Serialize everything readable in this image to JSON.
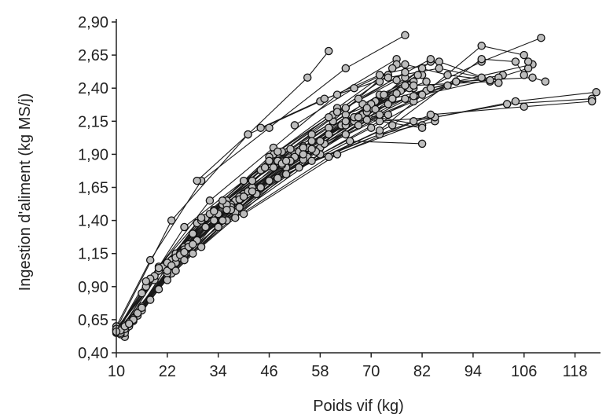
{
  "chart_data": {
    "type": "line",
    "xlabel": "Poids vif (kg)",
    "ylabel": "Ingestion d'aliment (kg MS/j)",
    "xlim": [
      10,
      124
    ],
    "ylim": [
      0.4,
      2.9
    ],
    "x_ticks": [
      10,
      22,
      34,
      46,
      58,
      70,
      82,
      94,
      106,
      118
    ],
    "x_tick_labels": [
      "10",
      "22",
      "34",
      "46",
      "58",
      "70",
      "82",
      "94",
      "106",
      "118"
    ],
    "y_ticks": [
      0.4,
      0.65,
      0.9,
      1.15,
      1.4,
      1.65,
      1.9,
      2.15,
      2.4,
      2.65,
      2.9
    ],
    "y_tick_labels": [
      "0,40",
      "0,65",
      "0,90",
      "1,15",
      "1,40",
      "1,65",
      "1,90",
      "2,15",
      "2,40",
      "2,65",
      "2,90"
    ],
    "grid": false,
    "legend": "none",
    "series": [
      {
        "x": [
          10,
          23,
          41,
          55,
          60
        ],
        "y": [
          0.58,
          1.4,
          2.05,
          2.48,
          2.68
        ]
      },
      {
        "x": [
          10,
          18,
          30,
          46,
          64,
          78
        ],
        "y": [
          0.6,
          1.1,
          1.7,
          2.1,
          2.55,
          2.8
        ]
      },
      {
        "x": [
          11,
          20,
          32,
          47,
          62,
          76
        ],
        "y": [
          0.55,
          1.05,
          1.55,
          1.95,
          2.35,
          2.62
        ]
      },
      {
        "x": [
          10,
          17,
          26,
          40,
          56,
          72,
          82
        ],
        "y": [
          0.55,
          0.9,
          1.35,
          1.7,
          2.05,
          2.35,
          2.5
        ]
      },
      {
        "x": [
          12,
          22,
          36,
          50,
          66,
          78
        ],
        "y": [
          0.52,
          0.98,
          1.4,
          1.8,
          2.15,
          2.48
        ]
      },
      {
        "x": [
          11,
          21,
          33,
          48,
          64,
          80
        ],
        "y": [
          0.58,
          1.05,
          1.48,
          1.85,
          2.2,
          2.4
        ]
      },
      {
        "x": [
          13,
          24,
          38,
          52,
          68,
          82
        ],
        "y": [
          0.62,
          1.15,
          1.55,
          1.9,
          2.2,
          2.12
        ]
      },
      {
        "x": [
          10,
          19,
          29,
          44,
          60,
          75
        ],
        "y": [
          0.57,
          0.95,
          1.38,
          1.78,
          2.1,
          2.32
        ]
      },
      {
        "x": [
          14,
          26,
          40,
          55,
          70,
          84
        ],
        "y": [
          0.65,
          1.2,
          1.6,
          1.95,
          2.25,
          2.6
        ]
      },
      {
        "x": [
          12,
          23,
          35,
          50,
          65,
          82
        ],
        "y": [
          0.55,
          1.0,
          1.4,
          1.75,
          2.0,
          1.98
        ]
      },
      {
        "x": [
          10,
          16,
          28,
          42,
          58,
          74
        ],
        "y": [
          0.56,
          0.85,
          1.3,
          1.65,
          1.95,
          2.2
        ]
      },
      {
        "x": [
          15,
          25,
          39,
          53,
          68,
          80
        ],
        "y": [
          0.7,
          1.15,
          1.58,
          1.92,
          2.28,
          2.45
        ]
      },
      {
        "x": [
          11,
          22,
          34,
          49,
          63,
          77
        ],
        "y": [
          0.54,
          1.0,
          1.45,
          1.82,
          2.12,
          2.38
        ]
      },
      {
        "x": [
          13,
          24,
          37,
          52,
          66,
          79
        ],
        "y": [
          0.6,
          1.08,
          1.52,
          1.88,
          2.18,
          2.42
        ]
      },
      {
        "x": [
          10,
          20,
          31,
          45,
          61,
          76
        ],
        "y": [
          0.58,
          1.02,
          1.42,
          1.8,
          2.15,
          2.58
        ]
      },
      {
        "x": [
          16,
          28,
          42,
          56,
          71,
          83
        ],
        "y": [
          0.75,
          1.3,
          1.7,
          2.0,
          2.3,
          2.45
        ]
      },
      {
        "x": [
          12,
          21,
          35,
          47,
          62,
          75
        ],
        "y": [
          0.6,
          1.05,
          1.52,
          1.9,
          2.25,
          2.55
        ]
      },
      {
        "x": [
          14,
          25,
          37,
          51,
          67,
          80
        ],
        "y": [
          0.64,
          1.12,
          1.5,
          1.85,
          2.12,
          2.3
        ]
      },
      {
        "x": [
          11,
          19,
          30,
          46,
          61,
          74
        ],
        "y": [
          0.56,
          0.98,
          1.4,
          1.88,
          2.2,
          2.5
        ]
      },
      {
        "x": [
          15,
          27,
          41,
          54,
          69,
          79
        ],
        "y": [
          0.68,
          1.22,
          1.62,
          1.96,
          2.22,
          2.4
        ]
      },
      {
        "x": [
          13,
          23,
          36,
          49,
          64,
          78
        ],
        "y": [
          0.62,
          1.1,
          1.55,
          1.92,
          2.25,
          2.52
        ]
      },
      {
        "x": [
          12,
          24,
          38,
          53,
          72,
          85
        ],
        "y": [
          0.58,
          1.08,
          1.46,
          1.8,
          2.05,
          2.15
        ]
      },
      {
        "x": [
          10,
          18,
          32,
          48,
          66,
          82
        ],
        "y": [
          0.57,
          0.96,
          1.45,
          1.85,
          2.18,
          2.1
        ]
      },
      {
        "x": [
          14,
          26,
          43,
          58,
          72,
          85
        ],
        "y": [
          0.66,
          1.18,
          1.6,
          1.9,
          2.15,
          2.18
        ]
      },
      {
        "x": [
          11,
          22,
          39,
          55,
          70,
          81
        ],
        "y": [
          0.55,
          1.02,
          1.5,
          1.88,
          2.28,
          2.5
        ]
      },
      {
        "x": [
          16,
          29,
          44,
          60,
          73,
          82
        ],
        "y": [
          0.72,
          1.25,
          1.65,
          2.05,
          2.35,
          2.55
        ]
      },
      {
        "x": [
          12,
          20,
          33,
          49,
          64,
          76
        ],
        "y": [
          0.61,
          1.04,
          1.47,
          1.83,
          2.12,
          2.36
        ]
      },
      {
        "x": [
          10,
          22,
          36,
          51,
          67,
          84
        ],
        "y": [
          0.58,
          1.08,
          1.52,
          1.94,
          2.32,
          2.62
        ]
      },
      {
        "x": [
          13,
          27,
          40,
          57,
          74,
          88
        ],
        "y": [
          0.63,
          1.2,
          1.58,
          1.92,
          2.28,
          2.42
        ]
      },
      {
        "x": [
          15,
          24,
          35,
          48,
          62,
          76
        ],
        "y": [
          0.7,
          1.12,
          1.55,
          1.92,
          2.22,
          2.46
        ]
      },
      {
        "x": [
          11,
          23,
          37,
          54,
          69,
          80
        ],
        "y": [
          0.57,
          1.06,
          1.48,
          1.86,
          2.16,
          2.34
        ]
      },
      {
        "x": [
          14,
          28,
          42,
          59,
          75,
          90
        ],
        "y": [
          0.65,
          1.22,
          1.62,
          1.98,
          2.32,
          2.45
        ]
      },
      {
        "x": [
          12,
          25,
          39,
          56,
          71,
          83
        ],
        "y": [
          0.6,
          1.14,
          1.56,
          1.94,
          2.24,
          2.38
        ]
      },
      {
        "x": [
          10,
          17,
          30,
          46,
          60,
          72
        ],
        "y": [
          0.56,
          0.94,
          1.42,
          1.85,
          2.18,
          2.45
        ]
      },
      {
        "x": [
          13,
          26,
          40,
          54,
          69,
          78
        ],
        "y": [
          0.62,
          1.16,
          1.58,
          1.95,
          2.25,
          2.42
        ]
      },
      {
        "x": [
          16,
          31,
          47,
          64,
          80,
          98
        ],
        "y": [
          0.74,
          1.35,
          1.8,
          2.15,
          2.42,
          2.45
        ]
      },
      {
        "x": [
          18,
          33,
          50,
          67,
          84,
          101
        ],
        "y": [
          0.8,
          1.4,
          1.85,
          2.18,
          2.4,
          2.5
        ]
      },
      {
        "x": [
          20,
          36,
          54,
          72,
          90,
          108
        ],
        "y": [
          0.88,
          1.48,
          1.9,
          2.2,
          2.45,
          2.58
        ]
      },
      {
        "x": [
          22,
          40,
          58,
          78,
          96,
          110
        ],
        "y": [
          0.95,
          1.58,
          2.0,
          2.32,
          2.6,
          2.78
        ]
      },
      {
        "x": [
          24,
          44,
          64,
          82,
          100,
          107
        ],
        "y": [
          1.02,
          1.65,
          2.05,
          2.35,
          2.48,
          2.55
        ]
      },
      {
        "x": [
          26,
          46,
          70,
          90,
          108,
          111
        ],
        "y": [
          1.1,
          1.7,
          2.1,
          2.45,
          2.48,
          2.45
        ]
      },
      {
        "x": [
          28,
          48,
          72,
          96,
          106,
          107
        ],
        "y": [
          1.15,
          1.72,
          2.08,
          2.72,
          2.65,
          2.6
        ]
      },
      {
        "x": [
          30,
          50,
          75,
          96,
          104,
          106
        ],
        "y": [
          1.2,
          1.75,
          2.12,
          2.62,
          2.6,
          2.5
        ]
      },
      {
        "x": [
          34,
          56,
          80,
          102,
          122
        ],
        "y": [
          1.35,
          1.85,
          2.15,
          2.28,
          2.32
        ]
      },
      {
        "x": [
          38,
          60,
          85,
          104,
          123
        ],
        "y": [
          1.42,
          1.88,
          2.18,
          2.3,
          2.37
        ]
      },
      {
        "x": [
          40,
          62,
          84,
          106,
          122
        ],
        "y": [
          1.45,
          1.9,
          2.2,
          2.26,
          2.3
        ]
      },
      {
        "x": [
          29,
          41,
          58,
          72,
          86,
          100
        ],
        "y": [
          1.7,
          2.05,
          2.3,
          2.5,
          2.6,
          2.44
        ]
      },
      {
        "x": [
          44,
          59,
          74,
          86,
          96
        ],
        "y": [
          2.1,
          2.32,
          2.48,
          2.55,
          2.48
        ]
      },
      {
        "x": [
          52,
          66,
          78,
          88,
          98
        ],
        "y": [
          2.12,
          2.4,
          2.58,
          2.5,
          2.46
        ]
      }
    ]
  }
}
